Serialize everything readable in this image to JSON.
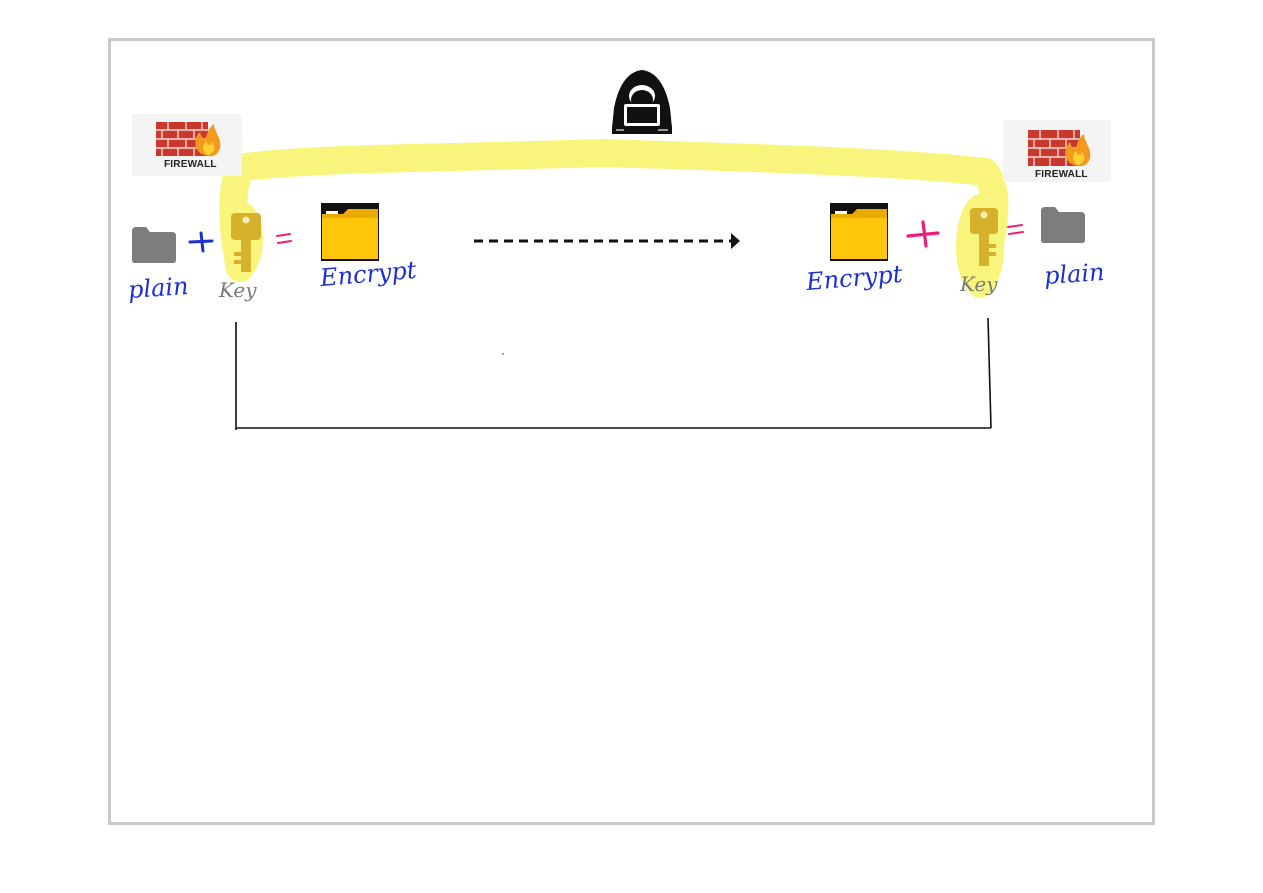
{
  "firewall_left": {
    "label": "FIREWALL"
  },
  "firewall_right": {
    "label": "FIREWALL"
  },
  "sender": {
    "plain_label": "plain",
    "plus_symbol": "+",
    "key_label": "Key",
    "equals_symbol": "=",
    "encrypt_label": "Encrypt"
  },
  "receiver": {
    "encrypt_label": "Encrypt",
    "plus_symbol": "+",
    "key_label": "Key",
    "equals_symbol": "=",
    "plain_label": "plain"
  },
  "colors": {
    "highlight": "#f7f04a",
    "pen_blue": "#1c2fd0",
    "pen_pink": "#ee1d7c",
    "folder_gray": "#7d7d7d",
    "folder_yellow": "#ffc60a",
    "frame_border": "#c9c9c9"
  },
  "icons": [
    "hacker-icon",
    "firewall-icon",
    "folder-icon",
    "key-icon",
    "arrow-right-icon"
  ]
}
